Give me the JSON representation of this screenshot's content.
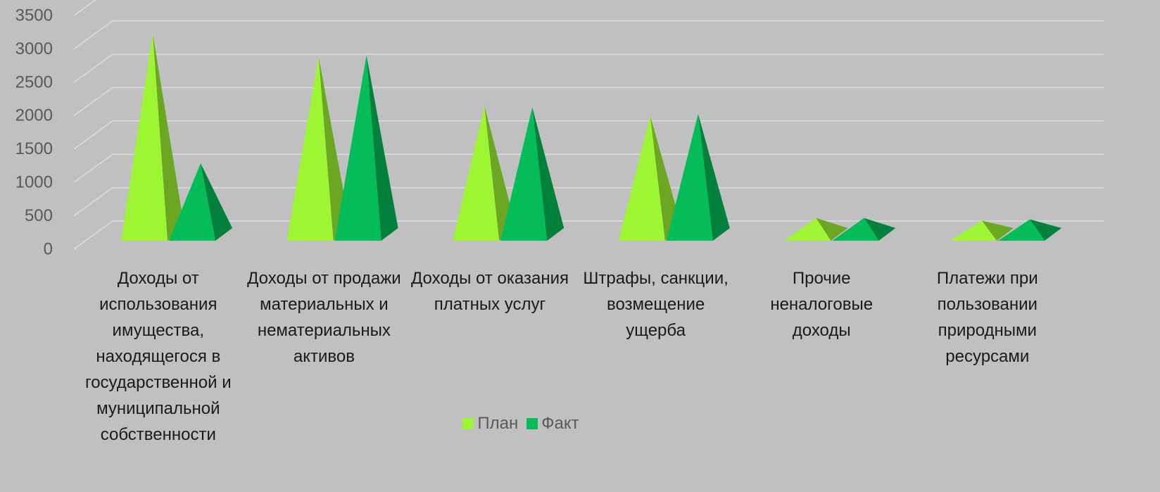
{
  "chart_data": {
    "type": "pyramid3d",
    "categories": [
      "Доходы от использования имущества, находящегося в государственной и муниципальной собственности",
      "Доходы от продажи материальных и нематериальных активов",
      "Доходы от оказания платных услуг",
      "Штрафы, санкции, возмещение ущерба",
      "Прочие неналоговые доходы",
      "Платежи при пользовании природными ресурсами"
    ],
    "series": [
      {
        "name": "План",
        "color": "#9ef533",
        "values": [
          3100,
          2760,
          2020,
          1870,
          340,
          300
        ]
      },
      {
        "name": "Факт",
        "color": "#05bd58",
        "values": [
          1160,
          2780,
          2000,
          1900,
          340,
          320
        ]
      }
    ],
    "ylim": [
      0,
      3500
    ],
    "yticks": [
      0,
      500,
      1000,
      1500,
      2000,
      2500,
      3000,
      3500
    ],
    "grid": true,
    "legend": "bottom"
  }
}
